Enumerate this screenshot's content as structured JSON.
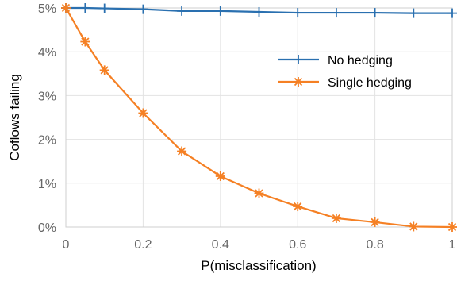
{
  "chart_data": {
    "type": "line",
    "xlabel": "P(misclassification)",
    "ylabel": "Coflows failing",
    "xlim": [
      0,
      1
    ],
    "ylim": [
      0,
      5
    ],
    "xticks": [
      0,
      0.2,
      0.4,
      0.6,
      0.8,
      1
    ],
    "xtick_labels": [
      "0",
      "0.2",
      "0.4",
      "0.6",
      "0.8",
      "1"
    ],
    "yticks": [
      0,
      1,
      2,
      3,
      4,
      5
    ],
    "ytick_labels": [
      "0%",
      "1%",
      "2%",
      "3%",
      "4%",
      "5%"
    ],
    "grid": true,
    "legend_position": "top-right",
    "x": [
      0,
      0.05,
      0.1,
      0.2,
      0.3,
      0.4,
      0.5,
      0.6,
      0.7,
      0.8,
      0.9,
      1.0
    ],
    "series": [
      {
        "name": "No hedging",
        "color": "#2a70b0",
        "marker": "plus",
        "values": [
          5.0,
          5.0,
          4.99,
          4.97,
          4.93,
          4.93,
          4.91,
          4.89,
          4.89,
          4.89,
          4.88,
          4.88
        ]
      },
      {
        "name": "Single hedging",
        "color": "#f58024",
        "marker": "asterisk",
        "values": [
          5.0,
          4.23,
          3.58,
          2.6,
          1.73,
          1.16,
          0.77,
          0.47,
          0.2,
          0.11,
          0.01,
          0.0
        ]
      }
    ]
  }
}
